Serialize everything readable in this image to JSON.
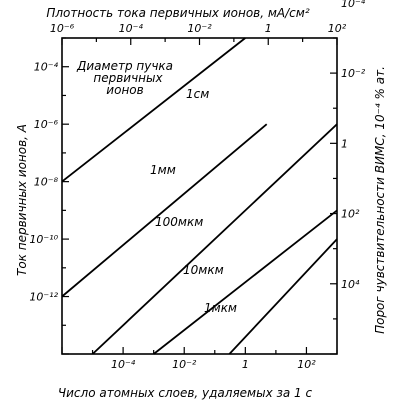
{
  "chart_data": {
    "type": "line",
    "title": "",
    "legend_title": [
      "Диаметр пучка",
      "первичных",
      "ионов"
    ],
    "axes": {
      "bottom": {
        "label": "Число атомных слоев, удаляемых за 1 с",
        "scale": "log",
        "range": [
          1e-06,
          1000
        ],
        "tick_values": [
          0.0001,
          0.01,
          1,
          100
        ],
        "tick_labels": [
          "10⁻⁴",
          "10⁻²",
          "1",
          "10²"
        ]
      },
      "top": {
        "label": "Плотность тока первичных ионов, мА/см²",
        "scale": "log",
        "range": [
          1e-06,
          100
        ],
        "tick_values": [
          1e-06,
          0.0001,
          0.01,
          1,
          100
        ],
        "tick_labels": [
          "10⁻⁶",
          "10⁻⁴",
          "10⁻²",
          "1",
          "10²"
        ]
      },
      "left": {
        "label": "Ток первичных ионов, А",
        "scale": "log",
        "range": [
          1e-14,
          0.001
        ],
        "tick_values": [
          0.0001,
          1e-06,
          1e-08,
          1e-10,
          1e-12
        ],
        "tick_labels": [
          "10⁻⁴",
          "10⁻⁶",
          "10⁻⁸",
          "10⁻¹⁰",
          "10⁻¹²"
        ]
      },
      "right": {
        "label": "Порог чувствительности ВИМС, 10⁻⁴ % ат.",
        "scale": "log",
        "range": [
          1000000,
          0.001
        ],
        "tick_values": [
          0.0001,
          0.01,
          1,
          100,
          10000
        ],
        "tick_labels": [
          "10⁻⁴",
          "10⁻²",
          "1",
          "10²",
          "10⁴"
        ]
      }
    },
    "series": [
      {
        "name": "1см",
        "points": [
          [
            1e-06,
            1e-08
          ],
          [
            1,
            0.001
          ]
        ]
      },
      {
        "name": "1мм",
        "points": [
          [
            1e-06,
            1e-12
          ],
          [
            5,
            1e-06
          ]
        ]
      },
      {
        "name": "100мкм",
        "points": [
          [
            1e-05,
            1e-14
          ],
          [
            1000,
            1e-06
          ]
        ]
      },
      {
        "name": "10мкм",
        "points": [
          [
            0.001,
            1e-14
          ],
          [
            1000,
            1e-09
          ]
        ]
      },
      {
        "name": "1мкм",
        "points": [
          [
            0.3,
            1e-14
          ],
          [
            1000,
            1e-10
          ]
        ]
      }
    ],
    "grid": false
  }
}
